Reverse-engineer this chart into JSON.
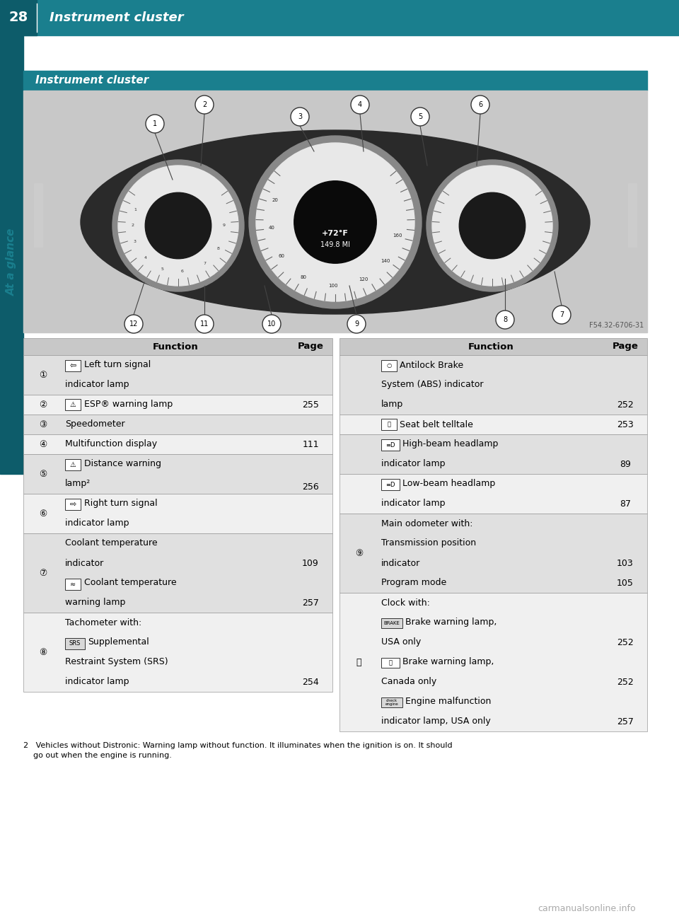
{
  "page_num": "28",
  "header_title": "Instrument cluster",
  "section_title": "Instrument cluster",
  "sidebar_text": "At a glance",
  "teal": "#1a7f8e",
  "dark_teal": "#0d5c6a",
  "page_bg": "#ffffff",
  "table_header_bg": "#c8c8c8",
  "row_bg_a": "#e0e0e0",
  "row_bg_b": "#f0f0f0",
  "border_color": "#999999",
  "image_ref": "F54.32-6706-31",
  "footer_text": "carmanualsonline.info",
  "footnote_line1": "2   Vehicles without Distronic: Warning lamp without function. It illuminates when the ignition is on. It should",
  "footnote_line2": "    go out when the engine is running."
}
